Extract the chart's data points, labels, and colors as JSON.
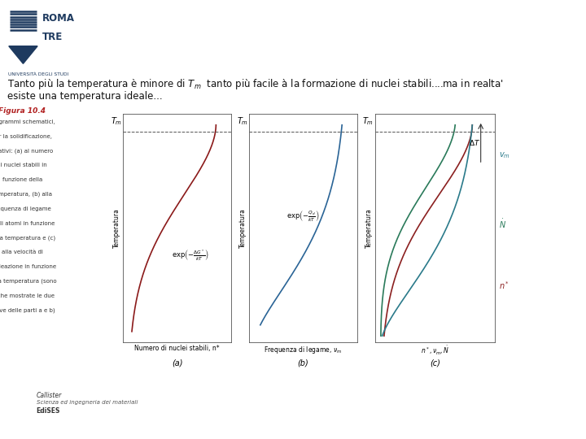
{
  "bg_color": "#ffffff",
  "text_color": "#111111",
  "logo_color": "#1e3a5f",
  "title_line1": "Tanto più la temperatura è minore di $T_m$  tanto più facile à la formazione di nuclei stabili....ma in realta'",
  "title_line2": "esiste una temperatura ideale...",
  "figure_caption": "Figura 10.4",
  "fig_desc_lines": [
    "Diagrammi schematici,",
    "per la solidificazione,",
    "relativi: (a) al numero",
    "di nuclei stabili in",
    "funzione della",
    "temperatura, (b) alla",
    "frequenza di legame",
    "degli atomi in funzione",
    "della temperatura e (c)",
    "alla velocità di",
    "nucleazione in funzione",
    "della temperatura (sono",
    "anche mostrate le due",
    "curve delle parti a e b)"
  ],
  "x_label_a": "Numero di nuclei stabili, n*",
  "x_label_b": "Frequenza di legame, $\\nu_m$",
  "x_label_c": "$n^*, \\nu_m, \\dot{N}$",
  "y_label": "Temperatura",
  "subplot_a": "(a)",
  "subplot_b": "(b)",
  "subplot_c": "(c)",
  "callister_text1": "Callister",
  "callister_text2": "Scienza ed ingegneria dei materiali",
  "callister_text3": "EdiSES",
  "curve_a_color": "#8b1a1a",
  "curve_b_color": "#2a6496",
  "curve_c_nstar_color": "#8b2020",
  "curve_c_vm_color": "#2a7a7a",
  "curve_c_ndot_color": "#2a7a7a",
  "dashed_line_color": "#888888",
  "arrow_color": "#333333"
}
